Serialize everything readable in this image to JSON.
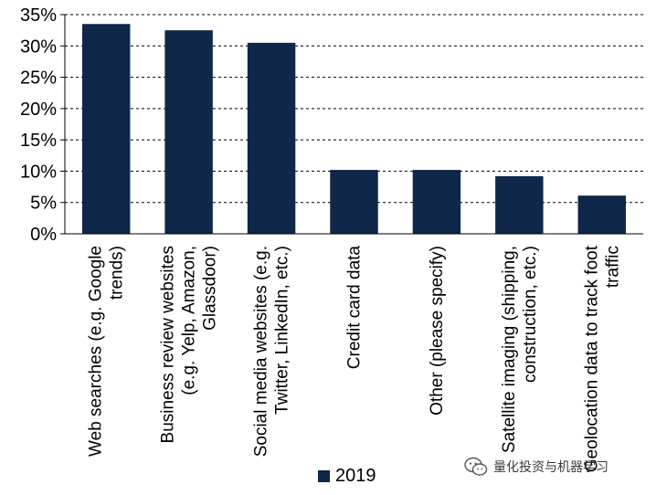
{
  "chart_data": {
    "type": "bar",
    "categories": [
      [
        "Web searches (e.g. Google",
        "trends)"
      ],
      [
        "Business review websites",
        "(e.g. Yelp, Amazon,",
        "Glassdoor)"
      ],
      [
        "Social media websites (e.g.",
        "Twitter, LinkedIn, etc.)"
      ],
      [
        "Credit card data"
      ],
      [
        "Other (please specify)"
      ],
      [
        "Satellite imaging (shipping,",
        "construction, etc.)"
      ],
      [
        "Geolocation data to track foot",
        "traffic"
      ]
    ],
    "series": [
      {
        "name": "2019",
        "values": [
          33.5,
          32.5,
          30.5,
          10.2,
          10.2,
          9.2,
          6.1
        ]
      }
    ],
    "ylim": [
      0,
      35
    ],
    "yticks": [
      0,
      5,
      10,
      15,
      20,
      25,
      30,
      35
    ],
    "ytick_labels": [
      "0%",
      "5%",
      "10%",
      "15%",
      "20%",
      "25%",
      "30%",
      "35%"
    ],
    "grid": "horizontal dashed",
    "legend_position": "bottom",
    "bar_color": "#0f2748"
  },
  "legend": {
    "label": "2019",
    "color": "#0f2748"
  },
  "watermark": {
    "text": "量化投资与机器学习",
    "icon": "wechat-icon"
  }
}
